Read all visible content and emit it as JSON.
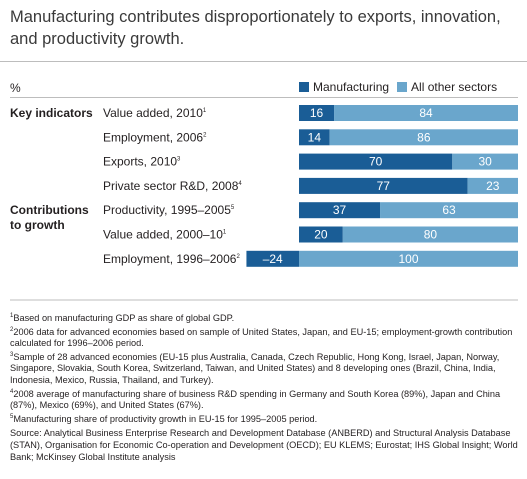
{
  "title": "Manufacturing contributes disproportionately to exports, innovation, and productivity growth.",
  "unit_label": "%",
  "colors": {
    "manufacturing": "#1a5d96",
    "other": "#6aa6cc",
    "rule": "#bdbdbd"
  },
  "chart_data": {
    "type": "bar",
    "orientation": "horizontal",
    "stacked": true,
    "title": "Manufacturing contributes disproportionately to exports, innovation, and productivity growth.",
    "unit": "%",
    "legend_position": "top-right",
    "series": [
      {
        "name": "Manufacturing",
        "values": [
          16,
          14,
          70,
          77,
          37,
          20,
          -24
        ]
      },
      {
        "name": "All other sectors",
        "values": [
          84,
          86,
          30,
          23,
          63,
          80,
          100
        ]
      }
    ],
    "groups": [
      {
        "label": "Key indicators",
        "rows": [
          0,
          1,
          2,
          3
        ]
      },
      {
        "label": "Contributions to growth",
        "rows": [
          4,
          5,
          6
        ]
      }
    ],
    "rows": [
      {
        "label": "Value added, 2010",
        "note": "1"
      },
      {
        "label": "Employment, 2006",
        "note": "2"
      },
      {
        "label": "Exports, 2010",
        "note": "3"
      },
      {
        "label": "Private sector R&D, 2008",
        "note": "4"
      },
      {
        "label": "Productivity, 1995–2005",
        "note": "5"
      },
      {
        "label": "Value added, 2000–10",
        "note": "1"
      },
      {
        "label": "Employment, 1996–2006",
        "note": "2"
      }
    ],
    "value_labels": [
      [
        "16",
        "84"
      ],
      [
        "14",
        "86"
      ],
      [
        "70",
        "30"
      ],
      [
        "77",
        "23"
      ],
      [
        "37",
        "63"
      ],
      [
        "20",
        "80"
      ],
      [
        "–24",
        "100"
      ]
    ]
  },
  "group_labels": [
    "Key indicators",
    "Contributions\nto growth"
  ],
  "footnotes": [
    {
      "num": "1",
      "text": "Based on manufacturing GDP as share of global GDP."
    },
    {
      "num": "2",
      "text": "2006 data for advanced economies based on sample of United States, Japan, and EU-15; employment-growth contribution calculated for 1996–2006 period."
    },
    {
      "num": "3",
      "text": "Sample of 28 advanced economies (EU-15 plus Australia, Canada, Czech Republic, Hong Kong, Israel, Japan, Norway, Singapore, Slovakia, South Korea, Switzerland, Taiwan, and United States) and 8 developing ones (Brazil, China, India, Indonesia, Mexico, Russia, Thailand, and Turkey)."
    },
    {
      "num": "4",
      "text": "2008 average of manufacturing share of business R&D spending in Germany and South Korea (89%), Japan and China (87%), Mexico (69%), and United States (67%)."
    },
    {
      "num": "5",
      "text": "Manufacturing share of productivity growth in EU-15 for 1995–2005 period."
    }
  ],
  "source": "Source: Analytical Business Enterprise Research and Development Database (ANBERD) and Structural Analysis Database (STAN), Organisation for Economic Co-operation and Development (OECD); EU KLEMS; Eurostat; IHS Global Insight; World Bank; McKinsey Global Institute analysis"
}
